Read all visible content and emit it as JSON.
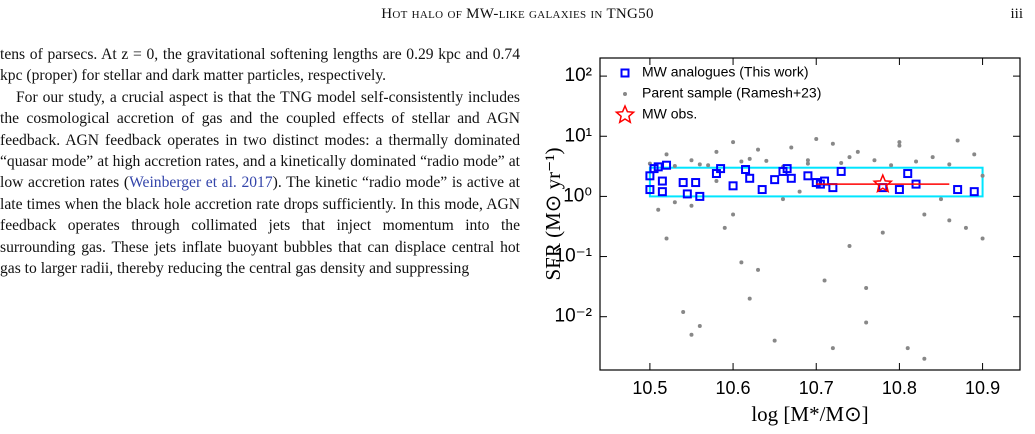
{
  "header": {
    "title": "Hot halo of MW-like galaxies in TNG50",
    "page": "iii"
  },
  "body": {
    "paragraphs": [
      {
        "text": "tens of parsecs. At z = 0, the gravitational softening lengths are 0.29 kpc and 0.74 kpc (proper) for stellar and dark matter particles, respectively."
      },
      {
        "text_before": "For our study, a crucial aspect is that the TNG model self-consistently includes the cosmological accretion of gas and the coupled effects of stellar and AGN feedback. AGN feedback operates in two distinct modes: a thermally dominated “quasar mode” at high accretion rates, and a kinetically dominated “radio mode” at low accretion rates (",
        "citation": "Weinberger et al. 2017",
        "text_after": "). The kinetic “radio mode” is active at late times when the black hole accretion rate drops sufficiently. In this mode, AGN feedback operates through collimated jets that inject momentum into the surrounding gas. These jets inflate buoyant bubbles that can displace central hot gas to larger radii, thereby reducing the central gas density and suppressing"
      }
    ]
  },
  "chart_data": {
    "type": "scatter",
    "xlabel": "log [M*/M⊙]",
    "ylabel": "SFR (M⊙ yr⁻¹)",
    "xlim": [
      10.44,
      10.945
    ],
    "ylim": [
      0.0013,
      200
    ],
    "log_y": true,
    "xticks": [
      10.5,
      10.6,
      10.7,
      10.8,
      10.9
    ],
    "yticks": [
      {
        "value": 100,
        "label": "10²"
      },
      {
        "value": 10,
        "label": "10¹"
      },
      {
        "value": 1,
        "label": "10⁰"
      },
      {
        "value": 0.1,
        "label": "10⁻¹"
      },
      {
        "value": 0.01,
        "label": "10⁻²"
      }
    ],
    "legend": "upper left",
    "selection_box": {
      "color": "#00e5ff",
      "x": [
        10.5,
        10.9
      ],
      "y": [
        1,
        3
      ]
    },
    "series": [
      {
        "name": "MW analogues (This work)",
        "color": "#0000ff",
        "marker": "square",
        "x": [
          10.5,
          10.505,
          10.51,
          10.52,
          10.5,
          10.515,
          10.515,
          10.54,
          10.545,
          10.555,
          10.56,
          10.58,
          10.585,
          10.6,
          10.615,
          10.62,
          10.635,
          10.65,
          10.66,
          10.665,
          10.67,
          10.69,
          10.7,
          10.705,
          10.71,
          10.72,
          10.73,
          10.78,
          10.8,
          10.81,
          10.82,
          10.87,
          10.89
        ],
        "values": [
          2.2,
          2.9,
          3.1,
          3.3,
          1.3,
          1.2,
          1.8,
          1.7,
          1.1,
          1.7,
          1.0,
          2.4,
          2.9,
          1.5,
          2.8,
          2.0,
          1.3,
          1.9,
          2.6,
          2.9,
          2.0,
          2.2,
          1.7,
          1.6,
          1.8,
          1.4,
          2.6,
          1.4,
          1.3,
          2.4,
          1.6,
          1.3,
          1.2
        ]
      },
      {
        "name": "Parent sample (Ramesh+23)",
        "color": "#888888",
        "marker": "dot",
        "x": [
          10.5,
          10.51,
          10.52,
          10.53,
          10.53,
          10.54,
          10.55,
          10.55,
          10.56,
          10.57,
          10.58,
          10.59,
          10.6,
          10.6,
          10.61,
          10.62,
          10.62,
          10.63,
          10.64,
          10.65,
          10.66,
          10.67,
          10.68,
          10.69,
          10.7,
          10.71,
          10.72,
          10.73,
          10.74,
          10.75,
          10.76,
          10.77,
          10.78,
          10.79,
          10.8,
          10.81,
          10.82,
          10.83,
          10.84,
          10.85,
          10.86,
          10.87,
          10.88,
          10.89,
          10.9,
          10.52,
          10.55,
          10.56,
          10.61,
          10.63,
          10.66,
          10.72,
          10.74,
          10.76,
          10.8,
          10.83,
          10.86,
          10.9,
          10.58,
          10.69
        ],
        "values": [
          3.5,
          0.6,
          5.0,
          3.2,
          0.8,
          0.012,
          0.005,
          4.0,
          0.007,
          3.3,
          1.8,
          0.3,
          8.0,
          0.5,
          3.8,
          0.02,
          4.2,
          0.06,
          3.9,
          0.004,
          0.9,
          6.5,
          1.2,
          3.5,
          9.0,
          0.04,
          7.5,
          3.6,
          0.15,
          5.5,
          0.008,
          4.0,
          0.25,
          3.3,
          7.0,
          0.003,
          3.8,
          0.5,
          4.5,
          0.9,
          3.4,
          8.5,
          0.3,
          5.0,
          2.2,
          0.2,
          0.7,
          3.4,
          0.08,
          6.0,
          3.1,
          0.003,
          4.5,
          0.03,
          8.0,
          0.002,
          0.4,
          0.2,
          5.5,
          4.0
        ]
      },
      {
        "name": "MW obs.",
        "color": "#ff0000",
        "marker": "star",
        "x": [
          10.78
        ],
        "values": [
          1.6
        ],
        "xerr": [
          0.08
        ]
      }
    ]
  }
}
